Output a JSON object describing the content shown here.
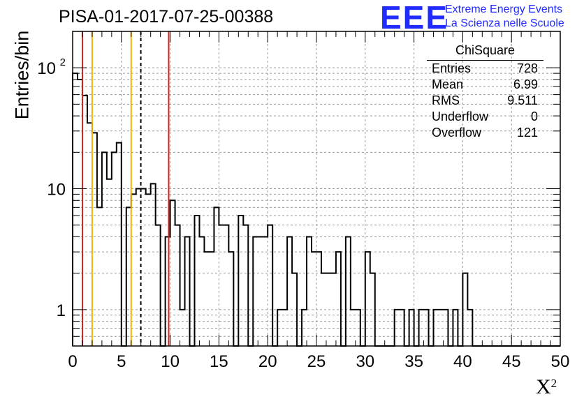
{
  "title": "PISA-01-2017-07-25-00388",
  "logo": {
    "mark": "EEE",
    "line1": "Extreme Energy Events",
    "line2": "La Scienza nelle Scuole",
    "color": "#1f2bff"
  },
  "stats_box": {
    "title": "ChiSquare",
    "rows": [
      {
        "label": "Entries",
        "value": "728"
      },
      {
        "label": "Mean",
        "value": "6.99"
      },
      {
        "label": "RMS",
        "value": "9.511"
      },
      {
        "label": "Underflow",
        "value": "0"
      },
      {
        "label": "Overflow",
        "value": "121"
      }
    ]
  },
  "chart_data": {
    "type": "bar",
    "histogram": true,
    "xlabel": "X",
    "xlabel_superscript": "2",
    "ylabel": "Entries/bin",
    "xlim": [
      0,
      50
    ],
    "ylim": [
      0.5,
      200
    ],
    "yscale": "log",
    "grid": true,
    "bin_width": 0.5,
    "x_ticks": [
      "0",
      "5",
      "10",
      "15",
      "20",
      "25",
      "30",
      "35",
      "40",
      "45",
      "50"
    ],
    "y_ticks": [
      {
        "value": 1,
        "label": "1"
      },
      {
        "value": 10,
        "label": "10"
      },
      {
        "value": 100,
        "label": "10",
        "sup": "2"
      }
    ],
    "bin_counts": [
      90,
      80,
      59,
      35,
      29,
      7,
      20,
      12,
      20,
      24,
      0.5,
      7,
      9,
      10,
      10,
      9,
      11,
      5,
      0.5,
      4,
      8,
      5,
      1,
      4,
      0.5,
      6,
      4,
      3,
      3,
      7,
      5,
      5,
      3,
      0.5,
      6,
      5,
      0.5,
      4,
      4,
      4,
      5,
      0.5,
      1,
      1,
      4,
      2,
      0.5,
      1,
      4,
      3,
      3,
      2,
      2,
      2,
      3,
      0.5,
      4,
      1,
      1,
      0.5,
      3,
      2,
      0.5,
      0.5,
      0.5,
      0.5,
      1,
      1,
      0.5,
      1,
      0.5,
      1,
      1,
      0.5,
      1,
      1,
      1,
      0.5,
      1,
      0.5,
      2,
      1,
      0.5,
      0.5,
      0.5,
      0.5,
      0.5,
      0.5,
      0.5,
      0.5,
      0.5,
      0.5,
      0.5,
      0.5,
      0.5,
      0.5,
      0.5,
      0.5,
      0.5,
      0.5
    ],
    "vertical_markers": [
      {
        "x": 1.0,
        "color": "#d42020",
        "style": "solid"
      },
      {
        "x": 2.0,
        "color": "#f0b400",
        "style": "solid"
      },
      {
        "x": 6.0,
        "color": "#f0b400",
        "style": "solid"
      },
      {
        "x": 6.99,
        "color": "#000000",
        "style": "dashed"
      },
      {
        "x": 9.85,
        "color": "#d42020",
        "style": "solid"
      }
    ]
  }
}
